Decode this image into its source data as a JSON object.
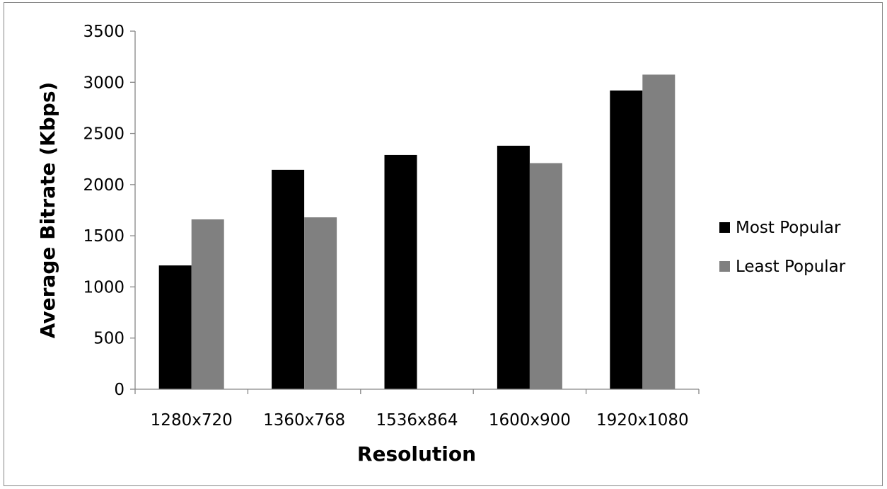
{
  "chart_data": {
    "type": "bar",
    "title": "",
    "xlabel": "Resolution",
    "ylabel": "Average Bitrate (Kbps)",
    "ylim": [
      0,
      3500
    ],
    "yticks": [
      0,
      500,
      1000,
      1500,
      2000,
      2500,
      3000,
      3500
    ],
    "categories": [
      "1280x720",
      "1360x768",
      "1536x864",
      "1600x900",
      "1920x1080"
    ],
    "series": [
      {
        "name": "Most Popular",
        "color": "#000000",
        "values": [
          1210,
          2145,
          2290,
          2380,
          2920
        ]
      },
      {
        "name": "Least Popular",
        "color": "#808080",
        "values": [
          1660,
          1680,
          null,
          2210,
          3075
        ]
      }
    ],
    "grid": false,
    "legend_position": "right"
  }
}
